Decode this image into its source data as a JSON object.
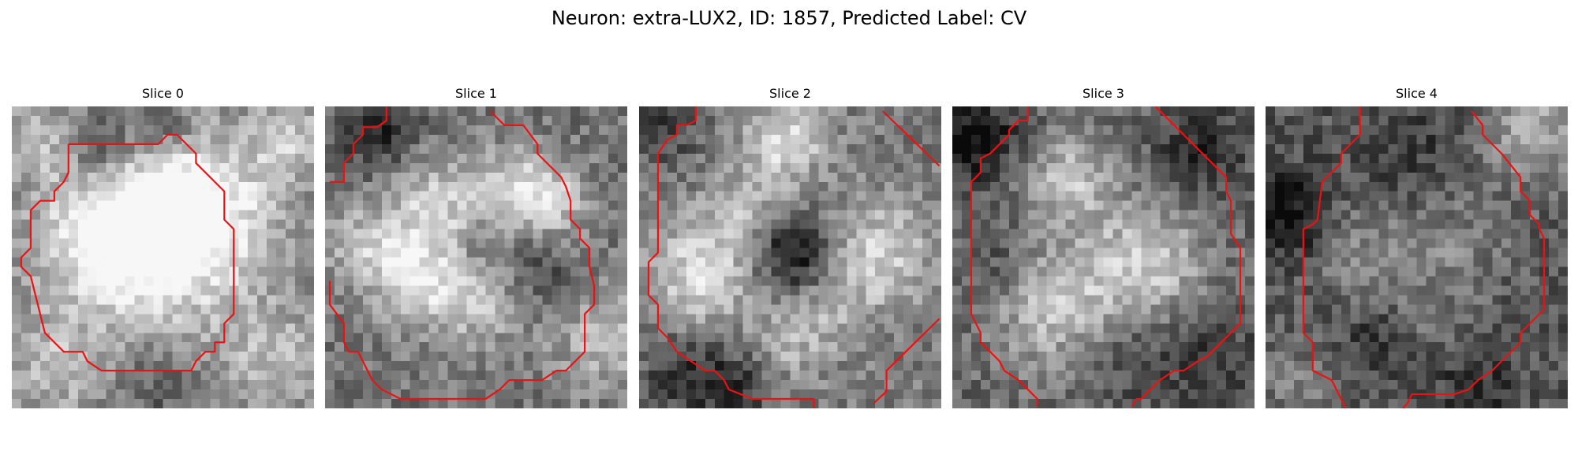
{
  "figure": {
    "suptitle": "Neuron: extra-LUX2, ID: 1857, Predicted Label: CV"
  },
  "contour_color": "#ee1111",
  "colormap": "grayscale",
  "panels": [
    {
      "title": "Slice 0"
    },
    {
      "title": "Slice 1"
    },
    {
      "title": "Slice 2"
    },
    {
      "title": "Slice 3"
    },
    {
      "title": "Slice 4"
    }
  ]
}
